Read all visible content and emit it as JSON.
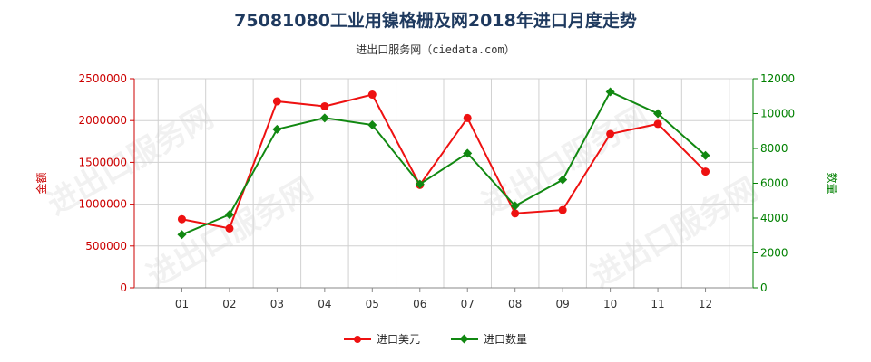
{
  "title": "75081080工业用镍格栅及网2018年进口月度走势",
  "subtitle": "进出口服务网（ciedata.com）",
  "watermark": "进出口服务网",
  "colors": {
    "left_axis": "#cc0000",
    "right_axis": "#008000",
    "series_amount": "#ee1111",
    "series_quantity": "#118811",
    "grid": "#d0d0d0",
    "title": "#1f3a5f"
  },
  "chart_data": {
    "type": "line",
    "title": "75081080工业用镍格栅及网2018年进口月度走势",
    "categories": [
      "01",
      "02",
      "03",
      "04",
      "05",
      "06",
      "07",
      "08",
      "09",
      "10",
      "11",
      "12"
    ],
    "y_left": {
      "label": "金额",
      "ylim": [
        0,
        2500000
      ],
      "ticks": [
        0,
        500000,
        1000000,
        1500000,
        2000000,
        2500000
      ]
    },
    "y_right": {
      "label": "数量",
      "ylim": [
        0,
        12000
      ],
      "ticks": [
        0,
        2000,
        4000,
        6000,
        8000,
        10000,
        12000
      ]
    },
    "series": [
      {
        "name": "进口美元",
        "axis": "left",
        "marker": "circle",
        "values": [
          820000,
          710000,
          2230000,
          2170000,
          2310000,
          1230000,
          2030000,
          890000,
          930000,
          1840000,
          1960000,
          1390000
        ]
      },
      {
        "name": "进口数量",
        "axis": "right",
        "marker": "diamond",
        "values": [
          3050,
          4200,
          9100,
          9750,
          9350,
          5950,
          7720,
          4700,
          6200,
          11250,
          10000,
          7600
        ]
      }
    ],
    "grid": true,
    "legend_position": "bottom-center"
  }
}
